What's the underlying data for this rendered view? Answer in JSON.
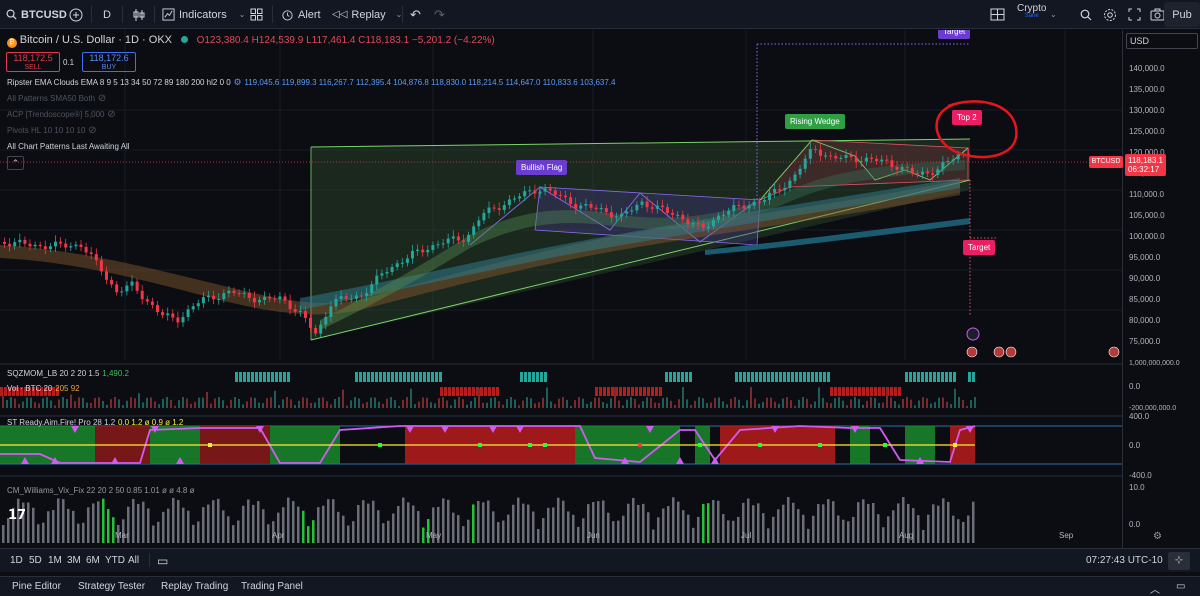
{
  "toolbar": {
    "symbol": "BTCUSD",
    "interval": "D",
    "indicators_label": "Indicators",
    "alert_label": "Alert",
    "replay_label": "Replay",
    "crypto_label": "Crypto",
    "crypto_sub": "Sane",
    "publish_label": "Pub"
  },
  "legend": {
    "title": "Bitcoin / U.S. Dollar · 1D · OKX",
    "ohlc": "O123,380.4 H124,539.9 L117,461.4 C118,183.1 −5,201.2 (−4.22%)",
    "sell_price": "118,172.5",
    "sell_label": "SELL",
    "spread": "0.1",
    "buy_price": "118,172.6",
    "buy_label": "BUY",
    "ema_name": "Ripster EMA Clouds EMA 8 9 5 13 34 50 72 89 180 200 hl2 0 0",
    "ema_values": "119,045.6 119,899.3 116,267.7 112,395.4 104,876.8 118,830.0 118,214.5 114,647.0 110,833.6 103,637.4",
    "ind2": "All Patterns SMA50 Both",
    "ind3": "ACP [Trendoscope®] 5,000",
    "ind4": "Pivots HL 10 10 10 10",
    "ind5": "All Chart Patterns Last Awaiting All"
  },
  "annotations": {
    "target_top": "Target",
    "top2": "Top 2",
    "rising_wedge": "Rising Wedge",
    "bullish_flag": "Bullish Flag",
    "target_bottom": "Target"
  },
  "panes": {
    "sqzmom": "SQZMOM_LB 20 2 20 1.5",
    "sqzmom_val": "1,490.2",
    "vol": "Vol · BTC 20",
    "vol_vals": "205 92",
    "st": "ST Ready.Aim.Fire! Pro 28 1.2",
    "st_vals": "0.0  1.2  ø  0.9  ø  1.2",
    "cm": "CM_Williams_Vix_Fix 22 20 2 50 0.85 1.01 ø ø 4.8 ø"
  },
  "price_axis": {
    "currency": "USD",
    "ticks": [
      "140,000.0",
      "135,000.0",
      "130,000.0",
      "125,000.0",
      "120,000.0",
      "115,000.0",
      "110,000.0",
      "105,000.0",
      "100,000.0",
      "95,000.0",
      "90,000.0",
      "85,000.0",
      "80,000.0",
      "75,000.0"
    ],
    "last_price": "118,183.1",
    "countdown": "06:32:17",
    "symbol_tag": "BTCUSD",
    "pane_ticks": [
      "1,000,000,000.0",
      "0.0",
      "-200,000,000.0",
      "400.0",
      "0.0",
      "-400.0",
      "10.0",
      "0.0"
    ]
  },
  "time_axis": [
    "Mar",
    "Apr",
    "May",
    "Jun",
    "Jul",
    "Aug",
    "Sep"
  ],
  "range_bar": {
    "ranges": [
      "1D",
      "5D",
      "1M",
      "3M",
      "6M",
      "YTD",
      "All"
    ],
    "clock": "07:27:43 UTC-10"
  },
  "bottom_tabs": [
    "Pine Editor",
    "Strategy Tester",
    "Replay Trading",
    "Trading Panel"
  ],
  "colors": {
    "up": "#26a69a",
    "down": "#f23645",
    "accent": "#2962ff"
  }
}
